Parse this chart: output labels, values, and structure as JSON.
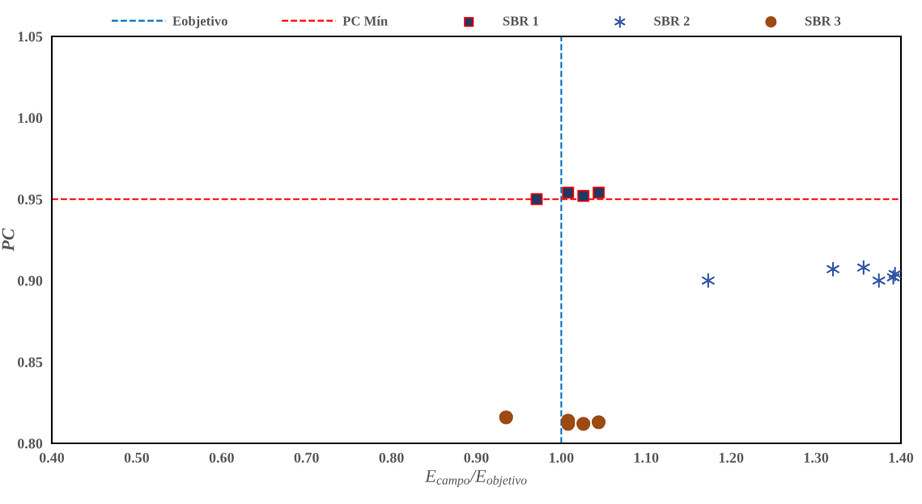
{
  "chart_data": {
    "type": "scatter",
    "xlabel": "E$_{campo}$/E$_{objetivo}$",
    "ylabel": "PC",
    "xlim": [
      0.4,
      1.4
    ],
    "xticks": [
      {
        "value": 0.4,
        "label": "0.40"
      },
      {
        "value": 0.5,
        "label": "0.50"
      },
      {
        "value": 0.6,
        "label": "0.60"
      },
      {
        "value": 0.7,
        "label": "0.70"
      },
      {
        "value": 0.8,
        "label": "0.80"
      },
      {
        "value": 0.9,
        "label": "0.90"
      },
      {
        "value": 1.0,
        "label": "1.00"
      },
      {
        "value": 1.1,
        "label": "1.10"
      },
      {
        "value": 1.2,
        "label": "1.20"
      },
      {
        "value": 1.3,
        "label": "1.30"
      },
      {
        "value": 1.4,
        "label": "1.40"
      }
    ],
    "ylim": [
      0.8,
      1.05
    ],
    "yticks": [
      {
        "value": 0.8,
        "label": "0.80"
      },
      {
        "value": 0.85,
        "label": "0.85"
      },
      {
        "value": 0.9,
        "label": "0.90"
      },
      {
        "value": 0.95,
        "label": "0.95"
      },
      {
        "value": 1.0,
        "label": "1.00"
      },
      {
        "value": 1.05,
        "label": "1.05"
      }
    ],
    "grid": false,
    "legend": "top",
    "ref_lines": [
      {
        "axis": "x",
        "value": 1.0,
        "label": "Eobjetivo",
        "color": "#0070c0",
        "line_style": "dashed"
      },
      {
        "axis": "y",
        "value": 0.95,
        "label": "PC Mín",
        "color": "#ff0000",
        "line_style": "dashed"
      }
    ],
    "series": [
      {
        "name": "SBR 1",
        "color": "#1f3864",
        "marker": "square",
        "x": [
          0.971,
          1.008,
          1.026,
          1.044
        ],
        "values": [
          0.95,
          0.954,
          0.952,
          0.954
        ]
      },
      {
        "name": "SBR 2",
        "color": "#2f55a4",
        "marker": "cross",
        "x": [
          1.173,
          1.32,
          1.356,
          1.374,
          1.391,
          1.393
        ],
        "values": [
          0.9,
          0.907,
          0.908,
          0.9,
          0.902,
          0.904
        ]
      },
      {
        "name": "SBR 3",
        "color": "#9c4a12",
        "marker": "circle",
        "x": [
          0.935,
          1.008,
          1.008,
          1.026,
          1.044
        ],
        "values": [
          0.816,
          0.814,
          0.812,
          0.812,
          0.813
        ]
      }
    ]
  }
}
